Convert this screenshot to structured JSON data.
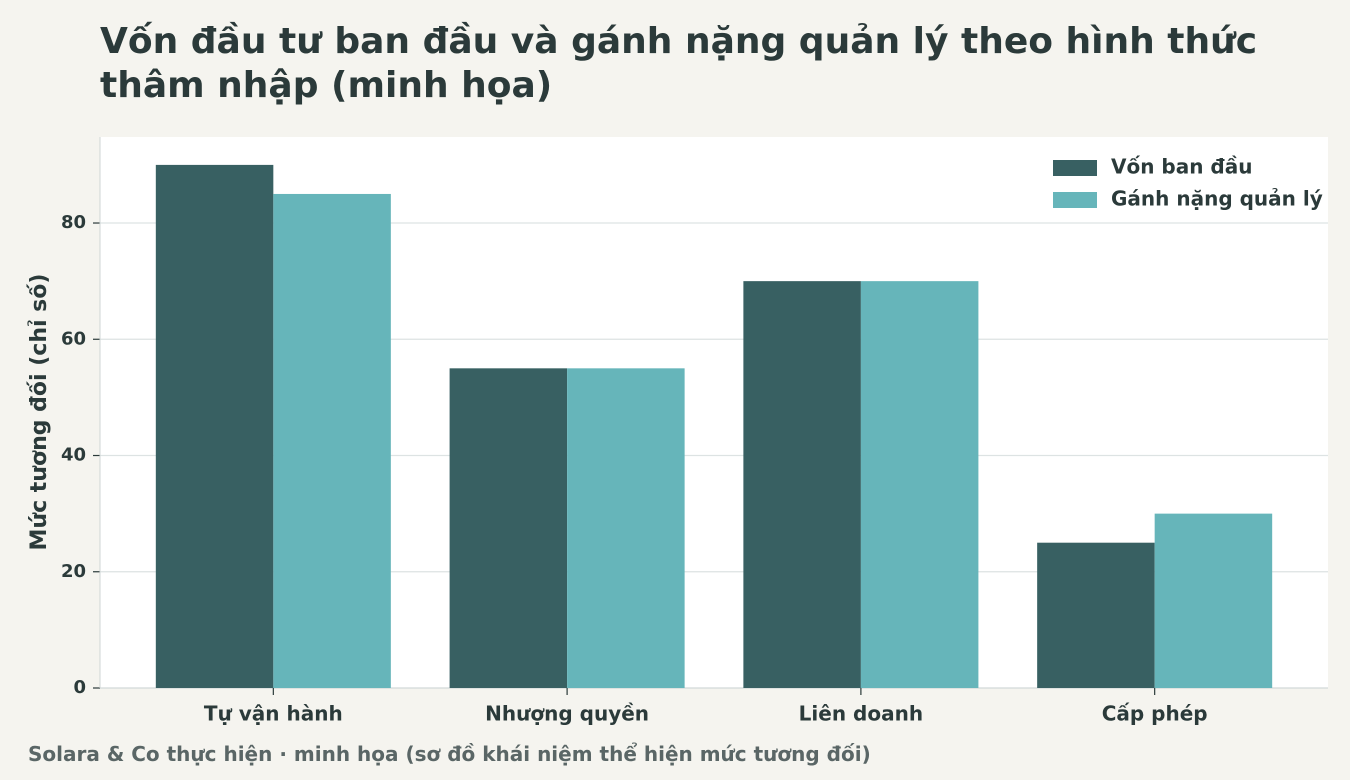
{
  "chart_data": {
    "type": "bar",
    "title": "Vốn đầu tư ban đầu và gánh nặng quản lý theo hình thức thâm nhập (minh họa)",
    "y_label": "Mức tương đối (chỉ số)",
    "footer": "Solara & Co thực hiện · minh họa (sơ đồ khái niệm thể hiện mức tương đối)",
    "categories": [
      "Tự vận hành",
      "Nhượng quyền",
      "Liên doanh",
      "Cấp phép"
    ],
    "series": [
      {
        "name": "Vốn ban đầu",
        "color": "#386062",
        "values": [
          90,
          55,
          70,
          25
        ]
      },
      {
        "name": "Gánh nặng quản lý",
        "color": "#66b5ba",
        "values": [
          85,
          55,
          70,
          30
        ]
      }
    ],
    "ylim": [
      0,
      94.8
    ],
    "yticks": [
      0,
      20,
      40,
      60,
      80
    ],
    "grid": true,
    "legend": "upper right"
  }
}
